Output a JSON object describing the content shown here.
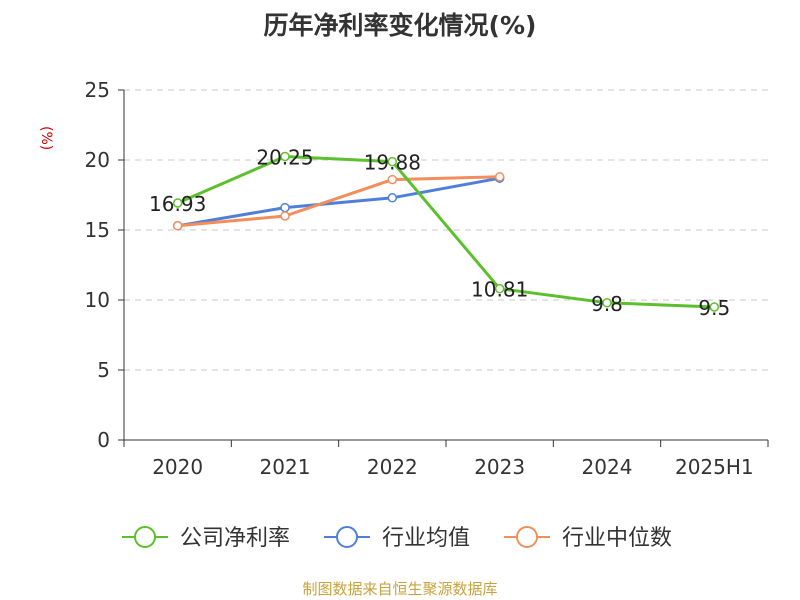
{
  "chart_data": {
    "type": "line",
    "title": "历年净利率变化情况(%)",
    "xlabel": "",
    "ylabel": "(%)",
    "categories": [
      "2020",
      "2021",
      "2022",
      "2023",
      "2024",
      "2025H1"
    ],
    "ylim": [
      0,
      25
    ],
    "yticks": [
      0,
      5,
      10,
      15,
      20,
      25
    ],
    "grid": true,
    "legend_position": "bottom",
    "series": [
      {
        "name": "公司净利率",
        "color": "#5cc02c",
        "values": [
          16.93,
          20.25,
          19.88,
          10.81,
          9.8,
          9.5
        ],
        "labels": [
          "16.93",
          "20.25",
          "19.88",
          "10.81",
          "9.8",
          "9.5"
        ]
      },
      {
        "name": "行业均值",
        "color": "#4f7fdb",
        "values": [
          15.3,
          16.6,
          17.3,
          18.7,
          null,
          null
        ]
      },
      {
        "name": "行业中位数",
        "color": "#f28e5b",
        "values": [
          15.3,
          16.0,
          18.6,
          18.8,
          null,
          null
        ]
      }
    ]
  },
  "source_note": "制图数据来自恒生聚源数据库"
}
